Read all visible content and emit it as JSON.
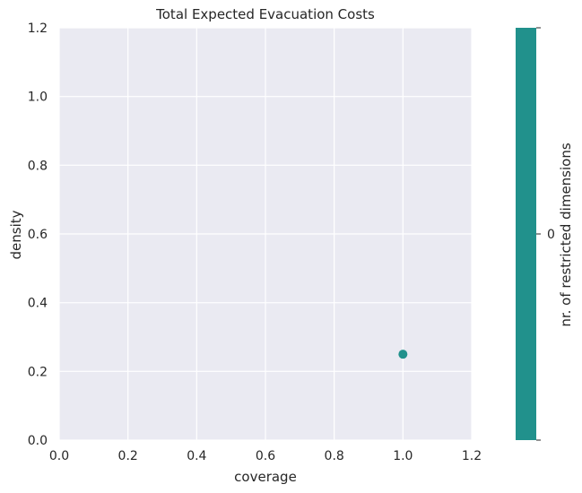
{
  "chart_data": {
    "type": "scatter",
    "title": "Total Expected Evacuation Costs",
    "xlabel": "coverage",
    "ylabel": "density",
    "xlim": [
      0,
      1.2
    ],
    "ylim": [
      0,
      1.2
    ],
    "xticks": [
      "0.0",
      "0.2",
      "0.4",
      "0.6",
      "0.8",
      "1.0",
      "1.2"
    ],
    "yticks": [
      "0.0",
      "0.2",
      "0.4",
      "0.6",
      "0.8",
      "1.0",
      "1.2"
    ],
    "grid": true,
    "points": [
      {
        "x": 1.0,
        "y": 0.25,
        "restricted_dimensions": 0
      }
    ],
    "colorbar": {
      "label": "nr. of restricted dimensions",
      "ticks": [
        "0"
      ],
      "color": "#21918c"
    },
    "colors": {
      "plot_background": "#eaeaf2",
      "grid": "#ffffff",
      "point": "#21918c"
    }
  }
}
